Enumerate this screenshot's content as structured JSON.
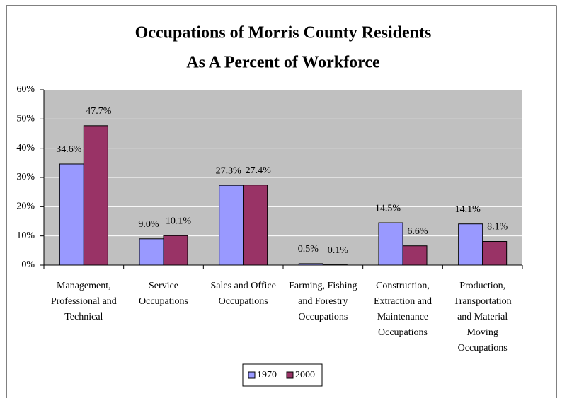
{
  "chart_data": {
    "type": "bar",
    "title": "Occupations of Morris County Residents",
    "subtitle": "As A Percent of Workforce",
    "categories": [
      "Management, Professional and Technical",
      "Service Occupations",
      "Sales and Office Occupations",
      "Farming, Fishing and Forestry Occupations",
      "Construction, Extraction and Maintenance Occupations",
      "Production, Transportation and Material Moving Occupations"
    ],
    "series": [
      {
        "name": "1970",
        "color": "#9999ff",
        "values": [
          34.6,
          9.0,
          27.3,
          0.5,
          14.5,
          14.1
        ],
        "value_labels": [
          "34.6%",
          "9.0%",
          "27.3%",
          "0.5%",
          "14.5%",
          "14.1%"
        ]
      },
      {
        "name": "2000",
        "color": "#993366",
        "values": [
          47.7,
          10.1,
          27.4,
          0.1,
          6.6,
          8.1
        ],
        "value_labels": [
          "47.7%",
          "10.1%",
          "27.4%",
          "0.1%",
          "6.6%",
          "8.1%"
        ]
      }
    ],
    "ylim": [
      0,
      60
    ],
    "yticks": [
      {
        "value": 0,
        "label": "0%"
      },
      {
        "value": 10,
        "label": "10%"
      },
      {
        "value": 20,
        "label": "20%"
      },
      {
        "value": 30,
        "label": "30%"
      },
      {
        "value": 40,
        "label": "40%"
      },
      {
        "value": 50,
        "label": "50%"
      },
      {
        "value": 60,
        "label": "60%"
      }
    ],
    "grid": true,
    "legend": "bottom"
  }
}
